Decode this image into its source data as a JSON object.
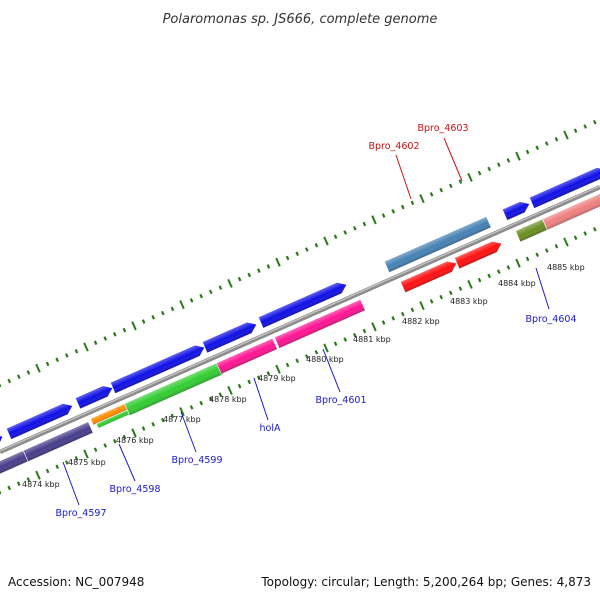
{
  "title": "Polaromonas sp. JS666, complete genome",
  "footer": {
    "accession": "Accession: NC_007948",
    "summary": "Topology: circular; Length: 5,200,264 bp; Genes: 4,873"
  },
  "colors": {
    "label_blue": "#1a1acc",
    "label_red": "#cc1111",
    "tick_green": "#2a7a1a",
    "backbone": "#8c8c8c"
  },
  "kbp_ticks": [
    "4874 kbp",
    "4875 kbp",
    "4876 kbp",
    "4877 kbp",
    "4878 kbp",
    "4879 kbp",
    "4880 kbp",
    "4881 kbp",
    "4882 kbp",
    "4883 kbp",
    "4884 kbp",
    "4885 kbp"
  ],
  "gene_labels": [
    {
      "text": "Bpro_4603",
      "color": "red"
    },
    {
      "text": "Bpro_4602",
      "color": "red"
    },
    {
      "text": "Bpro_4604",
      "color": "blue"
    },
    {
      "text": "Bpro_4601",
      "color": "blue"
    },
    {
      "text": "holA",
      "color": "blue"
    },
    {
      "text": "Bpro_4599",
      "color": "blue"
    },
    {
      "text": "Bpro_4598",
      "color": "blue"
    },
    {
      "text": "Bpro_4597",
      "color": "blue"
    }
  ],
  "gene_colors": {
    "blue": "#1010e6",
    "steel": "#4682b4",
    "red": "#ff1010",
    "olive": "#6b8e23",
    "salmon": "#f08080",
    "magenta": "#ff1493",
    "green": "#32cd32",
    "orange": "#ff8c00",
    "slate": "#483d8b"
  }
}
